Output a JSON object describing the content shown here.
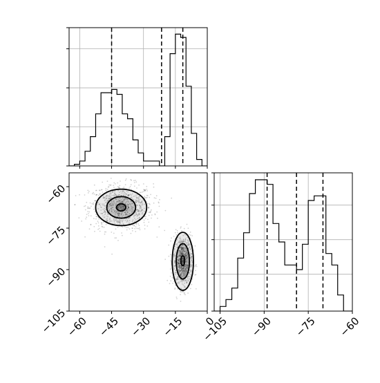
{
  "chart_data": {
    "type": "corner",
    "x_axis": {
      "ticks": [
        -60,
        -45,
        -30,
        -15,
        0
      ],
      "tick_labels": [
        "−60",
        "−45",
        "−30",
        "−15",
        "0"
      ]
    },
    "y_axis": {
      "ticks": [
        -60,
        -75,
        -90,
        -105
      ],
      "tick_labels": [
        "−60",
        "−75",
        "−90",
        "−105"
      ]
    },
    "hist_x": {
      "range": [
        -65,
        0
      ],
      "bin_edges": [
        -65,
        -62.5,
        -60,
        -57.5,
        -55,
        -52.5,
        -50,
        -47.5,
        -45,
        -42.5,
        -40,
        -37.5,
        -35,
        -32.5,
        -30,
        -27.5,
        -25,
        -22.5,
        -20,
        -17.5,
        -15,
        -12.5,
        -10,
        -7.5,
        -5,
        -2.5,
        0
      ],
      "counts": [
        0,
        1,
        3,
        9,
        18,
        32,
        45,
        45,
        47,
        44,
        32,
        29,
        16,
        8,
        3,
        3,
        3,
        0,
        18,
        69,
        81,
        79,
        49,
        20,
        4,
        0,
        0
      ],
      "ymax": 85,
      "quantiles": [
        -45,
        -21.5,
        -11.5
      ],
      "grid_x": [
        -60,
        -45,
        -30,
        -15
      ],
      "grid_y": [
        24,
        48,
        72
      ]
    },
    "hist_y": {
      "range": [
        -107,
        -60
      ],
      "bin_edges": [
        -107,
        -105,
        -103,
        -101,
        -99,
        -97,
        -95,
        -93,
        -91,
        -89,
        -87,
        -85,
        -83,
        -81,
        -79,
        -77,
        -75,
        -73,
        -71,
        -69,
        -67,
        -65,
        -63,
        -61,
        -59
      ],
      "counts": [
        0,
        2,
        5,
        10,
        23,
        34,
        51,
        57,
        57,
        55,
        38,
        30,
        20,
        20,
        18,
        29,
        48,
        50,
        50,
        25,
        20,
        7,
        0,
        0
      ],
      "ymax": 60,
      "quantiles": [
        -89,
        -79,
        -70
      ],
      "grid_x": [
        -105,
        -90,
        -75,
        -60
      ],
      "grid_y": [
        16,
        31,
        46
      ]
    },
    "scatter": {
      "xrange": [
        -65,
        0
      ],
      "yrange": [
        -105,
        -55
      ],
      "clusters": [
        {
          "cx": -40.5,
          "cy": -67.5,
          "sx": 7.5,
          "sy": 4.2
        },
        {
          "cx": -11.5,
          "cy": -87.0,
          "sx": 2.2,
          "sy": 4.6
        }
      ],
      "contours": [
        [
          {
            "cx": -40.5,
            "cy": -67.5,
            "rx": 2.2,
            "ry": 1.3
          },
          {
            "cx": -40.5,
            "cy": -67.5,
            "rx": 6.8,
            "ry": 3.9
          },
          {
            "cx": -40.5,
            "cy": -67.5,
            "rx": 12.0,
            "ry": 6.6
          }
        ],
        [
          {
            "cx": -11.5,
            "cy": -86.8,
            "rx": 0.9,
            "ry": 1.8
          },
          {
            "cx": -11.5,
            "cy": -87.0,
            "rx": 3.1,
            "ry": 6.4
          },
          {
            "cx": -11.5,
            "cy": -87.0,
            "rx": 5.0,
            "ry": 10.5
          }
        ]
      ]
    }
  }
}
